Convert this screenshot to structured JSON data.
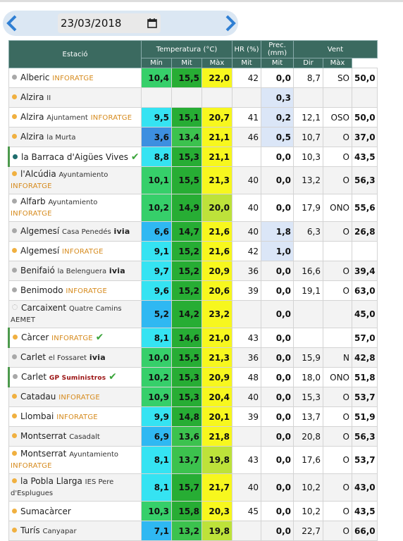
{
  "header": {
    "date": "23/03/2018"
  },
  "table": {
    "group_headers": [
      "Estació",
      "Temperatura (°C)",
      "HR (%)",
      "Prec. (mm)",
      "Vent"
    ],
    "sub_headers": [
      "Mín",
      "Mit",
      "Màx",
      "Mit",
      "Mit",
      "Dir",
      "Màx"
    ],
    "rows": [
      {
        "station": "Alberic",
        "source": "INFORATGE",
        "dot": "gray",
        "values": [
          "10,4",
          "15,5",
          "22,0",
          "42",
          "0,0",
          "8,7",
          "SO",
          "50,0"
        ]
      },
      {
        "station": "Alzira",
        "detail": "II",
        "dot": "orange",
        "values": [
          null,
          null,
          null,
          null,
          "0,3",
          null,
          null,
          null
        ]
      },
      {
        "station": "Alzira",
        "detail": "Ajuntament",
        "source": "INFORATGE",
        "dot": "orange",
        "values": [
          "9,5",
          "15,1",
          "20,7",
          "41",
          "0,2",
          "12,1",
          "OSO",
          "50,0"
        ]
      },
      {
        "station": "Alzira",
        "detail": "la Murta",
        "dot": "orange",
        "values": [
          "3,6",
          "13,4",
          "21,1",
          "46",
          "0,5",
          "10,7",
          "O",
          "37,0"
        ]
      },
      {
        "station": "la Barraca d'Aigües Vives",
        "dot": "teal",
        "verified": true,
        "values": [
          "8,8",
          "15,3",
          "21,1",
          null,
          "0,0",
          "10,3",
          "O",
          "43,5"
        ]
      },
      {
        "station": "l'Alcúdia",
        "detail": "Ayuntamiento",
        "source": "INFORATGE",
        "dot": "orange",
        "values": [
          "10,1",
          "15,5",
          "21,3",
          "40",
          "0,0",
          "13,2",
          "O",
          "56,3"
        ]
      },
      {
        "station": "Alfarb",
        "detail": "Ayuntamiento",
        "source": "INFORATGE",
        "dot": "gray",
        "values": [
          "10,2",
          "14,9",
          "20,0",
          "40",
          "0,0",
          "17,9",
          "ONO",
          "55,6"
        ]
      },
      {
        "station": "Algemesí",
        "detail": "Casa Penedés",
        "source": "ivia",
        "dot": "gray",
        "values": [
          "6,6",
          "14,7",
          "21,6",
          "40",
          "1,8",
          "6,3",
          "O",
          "26,8"
        ]
      },
      {
        "station": "Algemesí",
        "source": "INFORATGE",
        "dot": "orange",
        "values": [
          "9,1",
          "15,2",
          "21,6",
          "42",
          "1,0",
          null,
          null,
          null
        ]
      },
      {
        "station": "Benifaió",
        "detail": "la Belenguera",
        "source": "ivia",
        "dot": "gray",
        "values": [
          "9,7",
          "15,2",
          "20,9",
          "36",
          "0,0",
          "16,6",
          "O",
          "39,4"
        ]
      },
      {
        "station": "Benimodo",
        "source": "INFORATGE",
        "dot": "gray",
        "values": [
          "9,6",
          "15,2",
          "20,6",
          "39",
          "0,0",
          "19,1",
          "O",
          "63,0"
        ]
      },
      {
        "station": "Carcaixent",
        "detail": "Quatre Camins",
        "source": "AEMET",
        "dot": "none",
        "values": [
          "5,2",
          "14,2",
          "23,2",
          null,
          "0,0",
          null,
          null,
          "45,0"
        ]
      },
      {
        "station": "Càrcer",
        "source": "INFORATGE",
        "dot": "orange",
        "verified": true,
        "values": [
          "8,1",
          "14,6",
          "21,0",
          "43",
          "0,0",
          null,
          null,
          "57,0"
        ]
      },
      {
        "station": "Carlet",
        "detail": "el Fossaret",
        "source": "ivia",
        "dot": "gray",
        "values": [
          "10,0",
          "15,5",
          "21,3",
          "36",
          "0,0",
          "15,9",
          "N",
          "42,8"
        ]
      },
      {
        "station": "Carlet",
        "source": "GP Suministros",
        "dot": "gray",
        "verified": true,
        "values": [
          "10,2",
          "15,3",
          "20,9",
          "48",
          "0,0",
          "18,0",
          "ONO",
          "51,8"
        ]
      },
      {
        "station": "Catadau",
        "source": "INFORATGE",
        "dot": "orange",
        "values": [
          "10,9",
          "15,3",
          "20,4",
          "40",
          "0,0",
          "15,3",
          "O",
          "53,7"
        ]
      },
      {
        "station": "Llombai",
        "source": "INFORATGE",
        "dot": "orange",
        "values": [
          "9,9",
          "14,8",
          "20,1",
          "39",
          "0,0",
          "13,7",
          "O",
          "51,9"
        ]
      },
      {
        "station": "Montserrat",
        "detail": "Casadalt",
        "dot": "orange",
        "values": [
          "6,9",
          "13,6",
          "21,8",
          null,
          "0,0",
          "20,8",
          "O",
          "56,3"
        ]
      },
      {
        "station": "Montserrat",
        "detail": "Ayuntamiento",
        "source": "INFORATGE",
        "dot": "orange",
        "values": [
          "8,1",
          "13,7",
          "19,8",
          "43",
          "0,0",
          "17,6",
          "O",
          "53,7"
        ]
      },
      {
        "station": "la Pobla Llarga",
        "detail": "IES Pere d'Esplugues",
        "dot": "orange",
        "values": [
          "8,1",
          "15,7",
          "21,7",
          "40",
          "0,0",
          "10,2",
          "O",
          "43,0"
        ]
      },
      {
        "station": "Sumacàrcer",
        "dot": "orange",
        "values": [
          "10,3",
          "15,8",
          "20,3",
          "45",
          "0,0",
          "10,2",
          "O",
          "43,5"
        ]
      },
      {
        "station": "Turís",
        "detail": "Canyapar",
        "dot": "orange",
        "values": [
          "7,1",
          "13,2",
          "19,8",
          null,
          "0,0",
          "22,7",
          "O",
          "66,0"
        ]
      }
    ]
  }
}
